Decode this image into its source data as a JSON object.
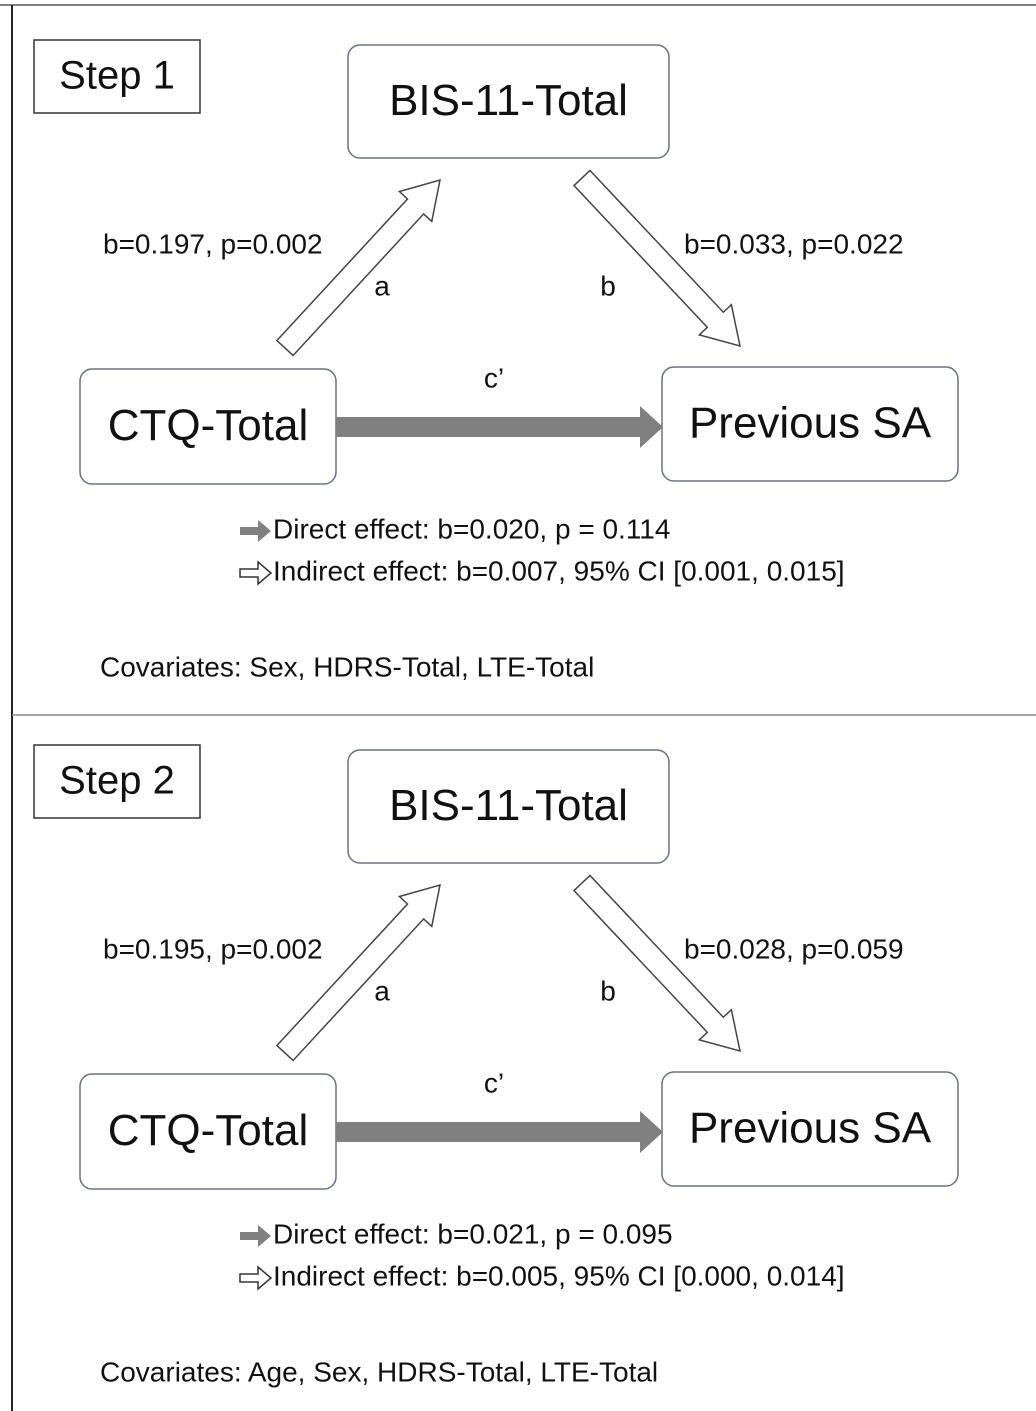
{
  "panels": [
    {
      "step": "Step 1",
      "nodes": {
        "mediator": "BIS-11-Total",
        "predictor": "CTQ-Total",
        "outcome": "Previous SA"
      },
      "paths": {
        "a": {
          "label": "a",
          "stats": "b=0.197, p=0.002"
        },
        "b": {
          "label": "b",
          "stats": "b=0.033, p=0.022"
        },
        "c": {
          "label": "c’"
        }
      },
      "direct_effect": "Direct effect: b=0.020, p = 0.114",
      "indirect_effect": "Indirect effect: b=0.007, 95% CI [0.001, 0.015]",
      "covariates": "Covariates: Sex, HDRS-Total, LTE-Total"
    },
    {
      "step": "Step 2",
      "nodes": {
        "mediator": "BIS-11-Total",
        "predictor": "CTQ-Total",
        "outcome": "Previous SA"
      },
      "paths": {
        "a": {
          "label": "a",
          "stats": "b=0.195, p=0.002"
        },
        "b": {
          "label": "b",
          "stats": "b=0.028, p=0.059"
        },
        "c": {
          "label": "c’"
        }
      },
      "direct_effect": "Direct effect: b=0.021, p = 0.095",
      "indirect_effect": "Indirect effect: b=0.005, 95% CI [0.000, 0.014]",
      "covariates": "Covariates: Age, Sex, HDRS-Total, LTE-Total"
    }
  ]
}
